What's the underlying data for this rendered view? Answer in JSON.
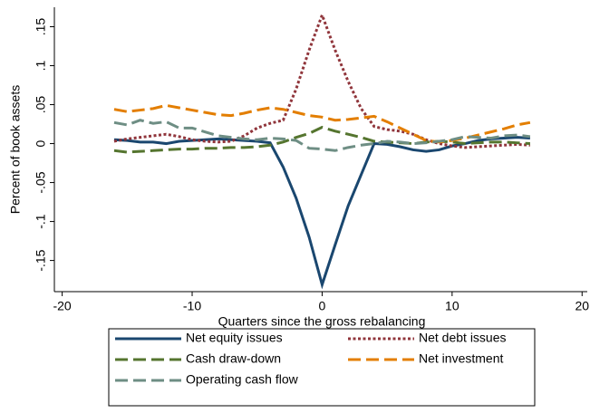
{
  "chart_data": {
    "type": "line",
    "xlabel": "Quarters since the gross rebalancing",
    "ylabel": "Percent of book assets",
    "x": [
      -16,
      -15,
      -14,
      -13,
      -12,
      -11,
      -10,
      -9,
      -8,
      -7,
      -6,
      -5,
      -4,
      -3,
      -2,
      -1,
      0,
      1,
      2,
      3,
      4,
      5,
      6,
      7,
      8,
      9,
      10,
      11,
      12,
      13,
      14,
      15,
      16
    ],
    "series": [
      {
        "name": "Net equity issues",
        "color": "#1a476f",
        "dash": "solid",
        "values": [
          0.005,
          0.004,
          0.002,
          0.002,
          0.0,
          0.003,
          0.004,
          0.005,
          0.006,
          0.005,
          0.004,
          0.003,
          0.001,
          -0.03,
          -0.07,
          -0.12,
          -0.181,
          -0.13,
          -0.08,
          -0.04,
          0.0,
          -0.001,
          -0.004,
          -0.008,
          -0.01,
          -0.008,
          -0.003,
          0.0,
          0.004,
          0.006,
          0.007,
          0.008,
          0.007
        ]
      },
      {
        "name": "Net debt issues",
        "color": "#90353b",
        "dash": "short",
        "values": [
          0.003,
          0.006,
          0.008,
          0.01,
          0.012,
          0.009,
          0.005,
          0.003,
          0.002,
          0.003,
          0.01,
          0.02,
          0.026,
          0.03,
          0.07,
          0.12,
          0.165,
          0.12,
          0.08,
          0.045,
          0.022,
          0.018,
          0.016,
          0.012,
          0.005,
          0.0,
          -0.003,
          -0.005,
          -0.004,
          -0.003,
          -0.002,
          -0.001,
          -0.002
        ]
      },
      {
        "name": "Cash draw-down",
        "color": "#55752f",
        "dash": "long",
        "values": [
          -0.009,
          -0.011,
          -0.01,
          -0.009,
          -0.008,
          -0.007,
          -0.007,
          -0.006,
          -0.006,
          -0.005,
          -0.005,
          -0.004,
          -0.002,
          0.002,
          0.008,
          0.013,
          0.021,
          0.016,
          0.012,
          0.008,
          0.003,
          0.002,
          0.001,
          0.0,
          0.002,
          0.003,
          0.002,
          0.0,
          0.001,
          0.002,
          0.002,
          0.001,
          0.0
        ]
      },
      {
        "name": "Net investment",
        "color": "#e37e00",
        "dash": "long",
        "values": [
          0.044,
          0.041,
          0.043,
          0.045,
          0.049,
          0.046,
          0.043,
          0.04,
          0.037,
          0.036,
          0.039,
          0.043,
          0.046,
          0.044,
          0.04,
          0.036,
          0.034,
          0.03,
          0.031,
          0.033,
          0.035,
          0.028,
          0.02,
          0.012,
          0.004,
          0.002,
          0.004,
          0.007,
          0.011,
          0.015,
          0.019,
          0.024,
          0.027
        ]
      },
      {
        "name": "Operating cash flow",
        "color": "#6e8e84",
        "dash": "long",
        "values": [
          0.027,
          0.024,
          0.03,
          0.026,
          0.028,
          0.02,
          0.02,
          0.015,
          0.01,
          0.008,
          0.006,
          0.005,
          0.007,
          0.006,
          0.004,
          -0.006,
          -0.007,
          -0.009,
          -0.005,
          -0.002,
          0.0,
          0.003,
          0.002,
          0.0,
          0.001,
          0.003,
          0.005,
          0.009,
          0.008,
          0.007,
          0.01,
          0.011,
          0.009
        ]
      }
    ],
    "xlim": [
      -20.6,
      20.4
    ],
    "xticks": [
      -20,
      -10,
      0,
      10,
      20
    ],
    "ylim": [
      -0.19,
      0.175
    ],
    "yticks": [
      {
        "value": -0.15,
        "label": "-.15"
      },
      {
        "value": -0.1,
        "label": "-.1"
      },
      {
        "value": -0.05,
        "label": "-.05"
      },
      0,
      {
        "value": 0.05,
        "label": ".05"
      },
      {
        "value": 0.1,
        "label": ".1"
      },
      {
        "value": 0.15,
        "label": ".15"
      }
    ],
    "legend": "bottom",
    "legend_columns": 2
  }
}
